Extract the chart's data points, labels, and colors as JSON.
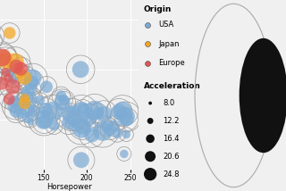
{
  "xlabel": "Horsepower",
  "xlim": [
    100,
    260
  ],
  "xticks": [
    150,
    200,
    250
  ],
  "origin_colors": {
    "USA": "#7dabd4",
    "Japan": "#f5a623",
    "Europe": "#e05555"
  },
  "legend_origin_title": "Origin",
  "legend_accel_title": "Acceleration",
  "accel_legend_values": [
    8.0,
    12.2,
    16.4,
    20.6,
    24.8
  ],
  "bg_color": "#f0f0f0",
  "grid_color": "#ffffff",
  "scatter_seed": 42,
  "n_usa": 55,
  "n_japan": 12,
  "n_europe": 12,
  "julia_circle_outer_color": "#cccccc",
  "julia_circle_inner_color": "#111111"
}
